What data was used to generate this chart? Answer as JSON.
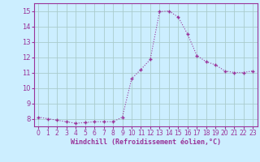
{
  "x": [
    0,
    1,
    2,
    3,
    4,
    5,
    6,
    7,
    8,
    9,
    10,
    11,
    12,
    13,
    14,
    15,
    16,
    17,
    18,
    19,
    20,
    21,
    22,
    23
  ],
  "y": [
    8.1,
    8.0,
    7.9,
    7.8,
    7.7,
    7.75,
    7.8,
    7.8,
    7.8,
    8.1,
    10.6,
    11.2,
    11.85,
    14.95,
    15.0,
    14.6,
    13.5,
    12.1,
    11.7,
    11.5,
    11.1,
    11.0,
    11.0,
    11.1
  ],
  "line_color": "#993399",
  "marker": "+",
  "marker_color": "#993399",
  "bg_color": "#cceeff",
  "grid_color": "#aacccc",
  "xlabel": "Windchill (Refroidissement éolien,°C)",
  "xlabel_color": "#993399",
  "tick_color": "#993399",
  "spine_color": "#993399",
  "ylim": [
    7.5,
    15.5
  ],
  "xlim": [
    -0.5,
    23.5
  ],
  "yticks": [
    8,
    9,
    10,
    11,
    12,
    13,
    14,
    15
  ],
  "xticks": [
    0,
    1,
    2,
    3,
    4,
    5,
    6,
    7,
    8,
    9,
    10,
    11,
    12,
    13,
    14,
    15,
    16,
    17,
    18,
    19,
    20,
    21,
    22,
    23
  ]
}
